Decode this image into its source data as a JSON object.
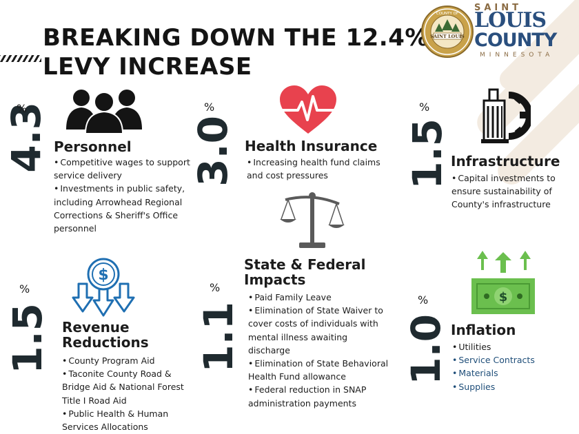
{
  "title": {
    "line1": "BREAKING DOWN THE 12.4%",
    "line2": "LEVY INCREASE"
  },
  "logo": {
    "seal_text_top": "COUNTY OF",
    "seal_text_mid": "SAINT LOUIS",
    "saint": "SAINT",
    "louis": "LOUIS",
    "county": "COUNTY",
    "state": "MINNESOTA"
  },
  "sign": "%",
  "sections": {
    "personnel": {
      "percent": "4.3",
      "heading": "Personnel",
      "icon": "people-icon",
      "items": [
        "Competitive wages to support service delivery",
        "Investments in public safety, including Arrowhead Regional Corrections & Sheriff's Office personnel"
      ]
    },
    "health": {
      "percent": "3.0",
      "heading": "Health Insurance",
      "icon": "heart-pulse-icon",
      "items": [
        "Increasing health fund claims and cost pressures"
      ]
    },
    "infrastructure": {
      "percent": "1.5",
      "heading": "Infrastructure",
      "icon": "building-gear-icon",
      "items": [
        "Capital investments to ensure sustainability of County's infrastructure"
      ]
    },
    "state_federal": {
      "percent": "1.1",
      "heading_line1": "State & Federal",
      "heading_line2": "Impacts",
      "icon": "scales-icon",
      "items": [
        "Paid Family Leave",
        "Elimination of State Waiver to cover costs of individuals with mental illness awaiting discharge",
        "Elimination of State Behavioral Health Fund allowance",
        "Federal reduction in SNAP administration payments"
      ]
    },
    "revenue": {
      "percent": "1.5",
      "heading_line1": "Revenue",
      "heading_line2": "Reductions",
      "icon": "dollar-down-arrows-icon",
      "items": [
        "County Program Aid",
        "Taconite County Road & Bridge Aid & National Forest Title I Road Aid",
        "Public Health & Human Services Allocations"
      ]
    },
    "inflation": {
      "percent": "1.0",
      "heading": "Inflation",
      "icon": "money-up-arrows-icon",
      "items": [
        "Utilities",
        "Service Contracts",
        "Materials",
        "Supplies"
      ]
    }
  },
  "colors": {
    "dark": "#1f2a2f",
    "heart": "#e8424e",
    "icon_blue": "#1f6fb2",
    "money_green": "#6bbf4e",
    "teal_text": "#1f4e79"
  }
}
